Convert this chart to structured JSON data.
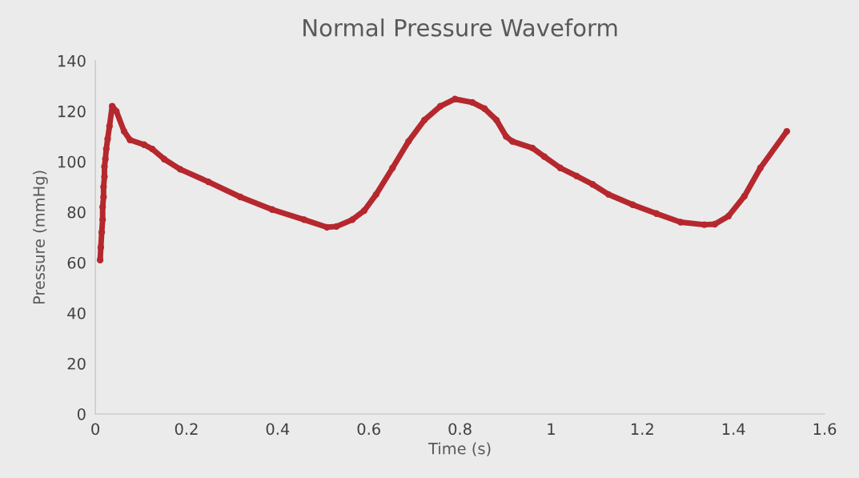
{
  "chart_data": {
    "type": "line",
    "title": "Normal Pressure Waveform",
    "xlabel": "Time (s)",
    "ylabel": "Pressure (mmHg)",
    "x": [
      0.0105,
      0.012,
      0.014,
      0.016,
      0.016,
      0.018,
      0.018,
      0.02,
      0.02,
      0.022,
      0.024,
      0.027,
      0.031,
      0.037,
      0.046,
      0.063,
      0.076,
      0.107,
      0.125,
      0.151,
      0.186,
      0.248,
      0.318,
      0.388,
      0.458,
      0.508,
      0.529,
      0.564,
      0.59,
      0.616,
      0.652,
      0.687,
      0.722,
      0.757,
      0.789,
      0.827,
      0.854,
      0.88,
      0.901,
      0.915,
      0.959,
      0.985,
      1.02,
      1.056,
      1.091,
      1.126,
      1.179,
      1.231,
      1.284,
      1.336,
      1.359,
      1.389,
      1.424,
      1.459,
      1.517
    ],
    "series": [
      {
        "color": "#b5282e",
        "values": [
          61,
          66,
          72,
          77,
          82,
          86,
          90,
          94,
          98,
          101,
          105,
          109,
          114,
          122,
          120,
          112,
          108.6,
          106.7,
          105,
          101,
          97,
          92,
          86,
          81,
          77,
          74,
          74.3,
          77,
          80.6,
          87,
          97.5,
          108,
          116.5,
          122,
          124.8,
          123.5,
          121,
          116.5,
          110,
          108,
          105.4,
          102,
          97.5,
          94.3,
          91,
          87,
          82.9,
          79.4,
          76,
          75,
          75.2,
          78.4,
          86.3,
          97.5,
          112
        ]
      }
    ],
    "xlim": [
      0,
      1.6
    ],
    "xticks": [
      0,
      0.2,
      0.4,
      0.6,
      0.8,
      1,
      1.2,
      1.4,
      1.6
    ],
    "ylim": [
      0,
      140
    ],
    "yticks": [
      0,
      20,
      40,
      60,
      80,
      100,
      120,
      140
    ],
    "grid": false,
    "legend": false,
    "marker": "circle",
    "line_style": "solid"
  }
}
